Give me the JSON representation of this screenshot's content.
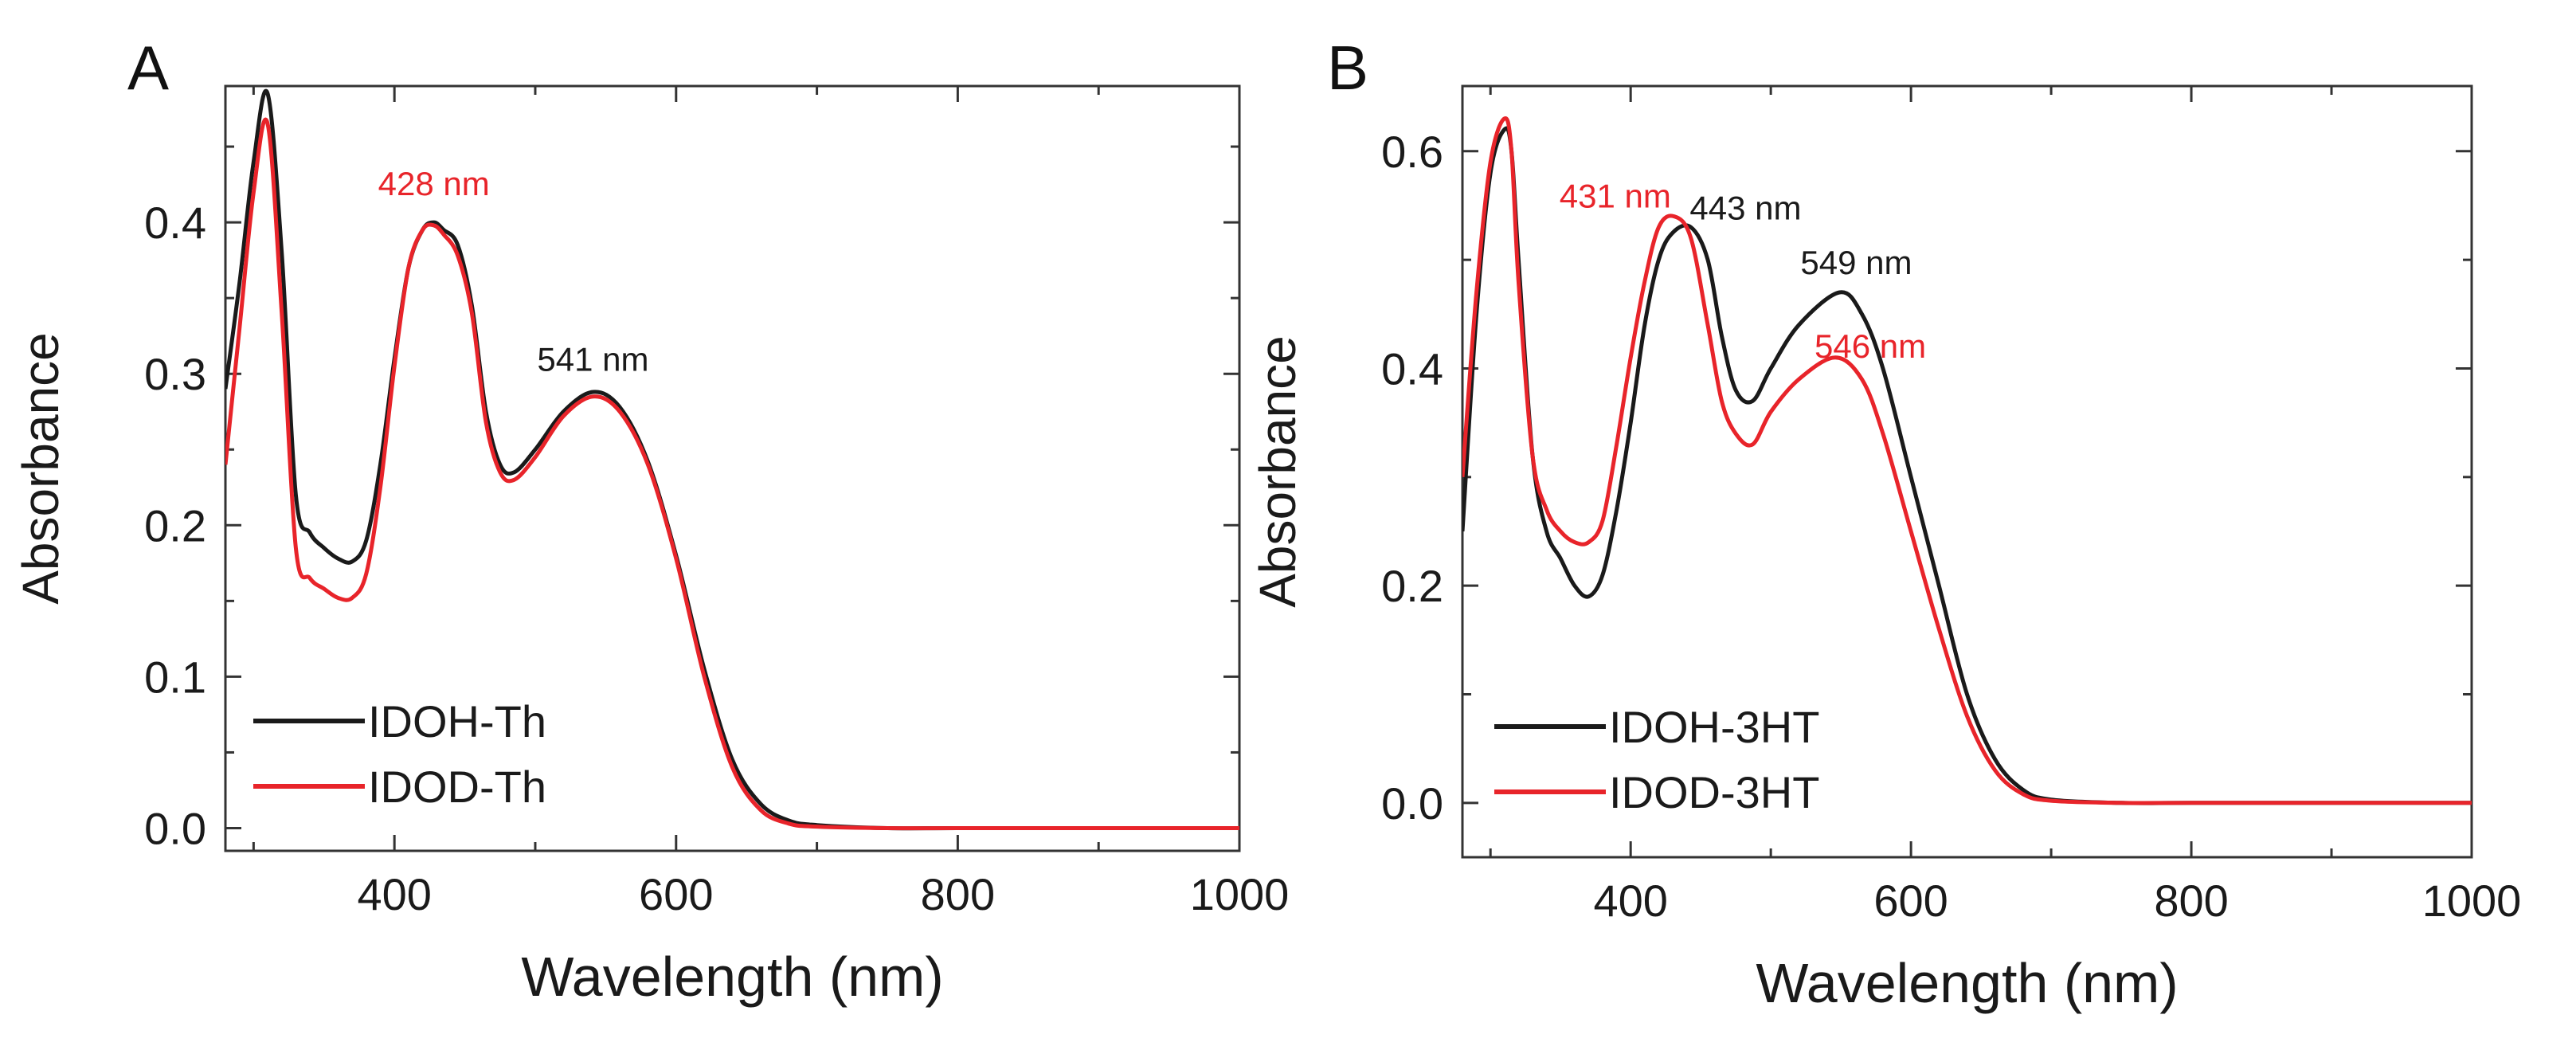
{
  "chart_data": [
    {
      "panel_label": "A",
      "type": "line",
      "xlabel": "Wavelength (nm)",
      "ylabel": "Absorbance",
      "xlim": [
        280,
        1000
      ],
      "ylim": [
        -0.015,
        0.49
      ],
      "xticks": [
        400,
        600,
        800,
        1000
      ],
      "yticks": [
        0.0,
        0.1,
        0.2,
        0.3,
        0.4
      ],
      "xtick_labels": [
        "400",
        "600",
        "800",
        "1000"
      ],
      "ytick_labels": [
        "0.0",
        "0.1",
        "0.2",
        "0.3",
        "0.4"
      ],
      "legend_placement": "bottom-left",
      "series": [
        {
          "name": "IDOH-Th",
          "color": "#1a1a1a",
          "x": [
            280,
            290,
            300,
            310,
            320,
            330,
            340,
            350,
            360,
            370,
            380,
            390,
            400,
            410,
            420,
            428,
            435,
            445,
            455,
            465,
            475,
            485,
            500,
            520,
            541,
            560,
            580,
            600,
            620,
            640,
            660,
            680,
            700,
            750,
            800,
            900,
            1000
          ],
          "y": [
            0.29,
            0.36,
            0.44,
            0.485,
            0.38,
            0.22,
            0.195,
            0.185,
            0.178,
            0.176,
            0.19,
            0.24,
            0.31,
            0.37,
            0.395,
            0.4,
            0.395,
            0.385,
            0.345,
            0.275,
            0.24,
            0.235,
            0.25,
            0.275,
            0.288,
            0.278,
            0.242,
            0.18,
            0.105,
            0.045,
            0.016,
            0.005,
            0.002,
            0.0,
            0.0,
            0.0,
            0.0
          ]
        },
        {
          "name": "IDOD-Th",
          "color": "#e8242a",
          "x": [
            280,
            290,
            300,
            310,
            320,
            330,
            340,
            350,
            360,
            370,
            380,
            390,
            400,
            410,
            420,
            428,
            435,
            445,
            455,
            465,
            475,
            485,
            500,
            520,
            541,
            560,
            580,
            600,
            620,
            640,
            660,
            680,
            700,
            750,
            800,
            900,
            1000
          ],
          "y": [
            0.24,
            0.33,
            0.42,
            0.465,
            0.34,
            0.185,
            0.165,
            0.158,
            0.152,
            0.152,
            0.168,
            0.225,
            0.305,
            0.37,
            0.395,
            0.398,
            0.392,
            0.378,
            0.34,
            0.268,
            0.235,
            0.23,
            0.245,
            0.272,
            0.285,
            0.275,
            0.24,
            0.178,
            0.1,
            0.04,
            0.012,
            0.003,
            0.001,
            0.0,
            0.0,
            0.0,
            0.0
          ]
        }
      ],
      "annotations": [
        {
          "text": "428 nm",
          "color": "#e8242a",
          "x": 428,
          "y": 0.418
        },
        {
          "text": "541 nm",
          "color": "#1a1a1a",
          "x": 541,
          "y": 0.302
        }
      ]
    },
    {
      "panel_label": "B",
      "type": "line",
      "xlabel": "Wavelength (nm)",
      "ylabel": "Absorbance",
      "xlim": [
        280,
        1000
      ],
      "ylim": [
        -0.05,
        0.66
      ],
      "xticks": [
        400,
        600,
        800,
        1000
      ],
      "yticks": [
        0.0,
        0.2,
        0.4,
        0.6
      ],
      "xtick_labels": [
        "400",
        "600",
        "800",
        "1000"
      ],
      "ytick_labels": [
        "0.0",
        "0.2",
        "0.4",
        "0.6"
      ],
      "legend_placement": "bottom-left",
      "series": [
        {
          "name": "IDOH-3HT",
          "color": "#1a1a1a",
          "x": [
            280,
            290,
            300,
            310,
            315,
            320,
            330,
            340,
            350,
            360,
            370,
            380,
            390,
            400,
            410,
            420,
            430,
            443,
            455,
            465,
            475,
            487,
            500,
            520,
            549,
            565,
            580,
            600,
            620,
            640,
            660,
            680,
            700,
            750,
            800,
            900,
            1000
          ],
          "y": [
            0.25,
            0.45,
            0.58,
            0.62,
            0.6,
            0.5,
            0.32,
            0.25,
            0.225,
            0.2,
            0.19,
            0.21,
            0.27,
            0.35,
            0.44,
            0.5,
            0.525,
            0.53,
            0.5,
            0.43,
            0.38,
            0.37,
            0.4,
            0.44,
            0.47,
            0.45,
            0.4,
            0.3,
            0.2,
            0.1,
            0.04,
            0.012,
            0.003,
            0.0,
            0.0,
            0.0,
            0.0
          ]
        },
        {
          "name": "IDOD-3HT",
          "color": "#e8242a",
          "x": [
            280,
            290,
            300,
            310,
            315,
            320,
            330,
            340,
            350,
            360,
            370,
            380,
            390,
            400,
            410,
            420,
            431,
            443,
            455,
            465,
            475,
            487,
            500,
            520,
            546,
            565,
            580,
            600,
            620,
            640,
            660,
            680,
            700,
            750,
            800,
            900,
            1000
          ],
          "y": [
            0.3,
            0.47,
            0.59,
            0.63,
            0.6,
            0.48,
            0.32,
            0.27,
            0.25,
            0.24,
            0.24,
            0.26,
            0.33,
            0.41,
            0.48,
            0.53,
            0.54,
            0.52,
            0.44,
            0.37,
            0.34,
            0.33,
            0.36,
            0.39,
            0.41,
            0.39,
            0.34,
            0.25,
            0.16,
            0.08,
            0.03,
            0.008,
            0.002,
            0.0,
            0.0,
            0.0,
            0.0
          ]
        }
      ],
      "annotations": [
        {
          "text": "431 nm",
          "color": "#e8242a",
          "x": 389,
          "y": 0.548
        },
        {
          "text": "443 nm",
          "color": "#1a1a1a",
          "x": 482,
          "y": 0.537
        },
        {
          "text": "549 nm",
          "color": "#1a1a1a",
          "x": 561,
          "y": 0.487
        },
        {
          "text": "546 nm",
          "color": "#e8242a",
          "x": 571,
          "y": 0.41
        }
      ]
    }
  ]
}
